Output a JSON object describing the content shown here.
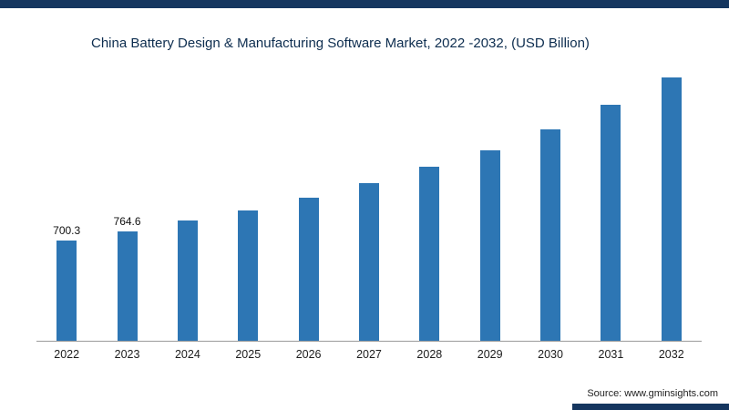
{
  "page": {
    "accent_color": "#15365f",
    "title_color": "#0d2d4f"
  },
  "header": {
    "title": "China Battery Design & Manufacturing Software Market, 2022 -2032, (USD Billion)"
  },
  "source": {
    "label": "Source: www.gminsights.com"
  },
  "chart_data": {
    "type": "bar",
    "title": "China Battery Design & Manufacturing Software Market, 2022 -2032, (USD Billion)",
    "categories": [
      "2022",
      "2023",
      "2024",
      "2025",
      "2026",
      "2027",
      "2028",
      "2029",
      "2030",
      "2031",
      "2032"
    ],
    "values": [
      700.3,
      764.6,
      840,
      910,
      1000,
      1095,
      1210,
      1325,
      1470,
      1640,
      1830
    ],
    "value_labels": [
      "700.3",
      "764.6",
      "",
      "",
      "",
      "",
      "",
      "",
      "",
      "",
      ""
    ],
    "xlabel": "",
    "ylabel": "",
    "ylim": [
      0,
      1900
    ],
    "grid": false,
    "legend": false,
    "bar_color": "#2d76b4",
    "notes": "Only 2022 and 2023 bars carry visible data labels; values for 2024-2032 estimated from bar heights."
  }
}
